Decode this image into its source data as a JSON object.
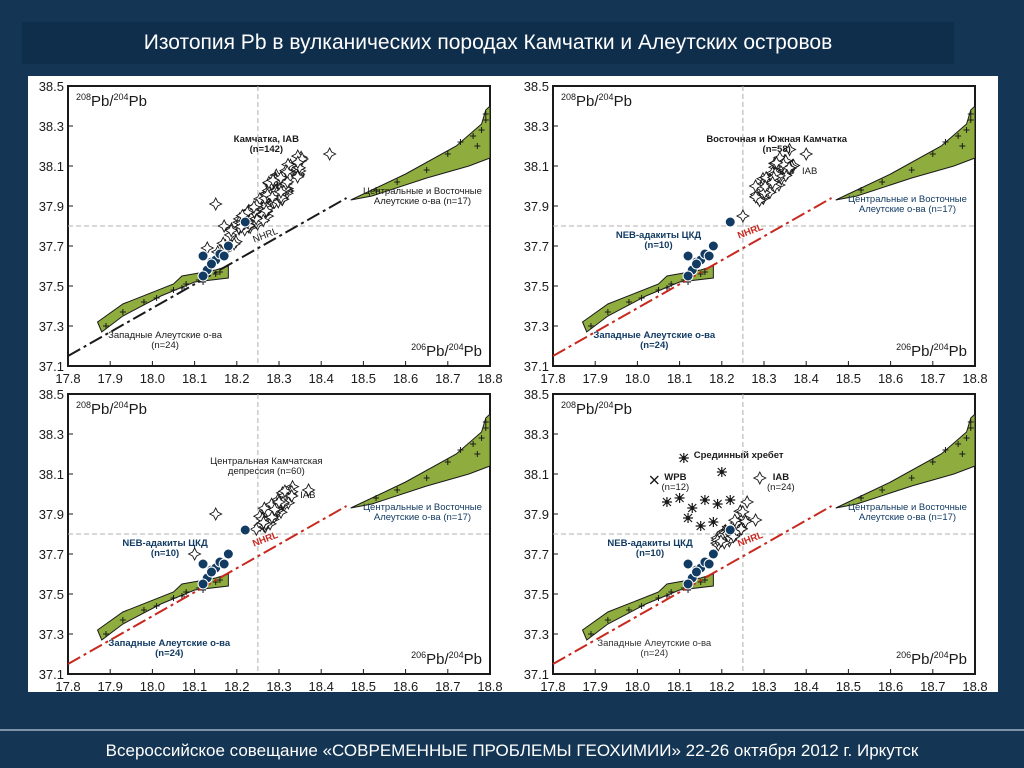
{
  "header": {
    "title": "Изотопия Pb в вулканических породах Камчатки и Алеутских островов"
  },
  "footer": {
    "text": "Всероссийское совещание «СОВРЕМЕННЫЕ ПРОБЛЕМЫ ГЕОХИМИИ» 22-26 октября 2012 г. Иркутск"
  },
  "colors": {
    "field_fill": "#8fad3f",
    "field_stroke": "#1a1a1a",
    "neb_point": "#123b63",
    "neb_text": "#123b63",
    "nhrl_dark": "#1a1a1a",
    "nhrl_red": "#c8281e",
    "ref_line": "#b0b0b0"
  },
  "axes": {
    "x_label_base": "Pb/",
    "x_label_sup1": "206",
    "x_label_sup2": "204",
    "x_label_end": "Pb",
    "y_label_base": "Pb/",
    "y_label_sup1": "208",
    "y_label_sup2": "204",
    "y_label_end": "Pb",
    "xlim": [
      17.8,
      18.8
    ],
    "ylim": [
      37.1,
      38.5
    ],
    "x_ticks": [
      "17.8",
      "17.9",
      "18.0",
      "18.1",
      "18.2",
      "18.3",
      "18.4",
      "18.5",
      "18.6",
      "18.7",
      "18.8"
    ],
    "y_ticks": [
      "37.1",
      "37.3",
      "37.5",
      "37.7",
      "37.9",
      "38.1",
      "38.3",
      "38.5"
    ],
    "ref_x": 18.25,
    "ref_y": 37.8
  },
  "chart_data": [
    {
      "type": "scatter",
      "nhrl_style": "dark",
      "show_x_label": true,
      "labels": [
        {
          "text": "Камчатка, IAB",
          "x": 18.27,
          "y": 38.22,
          "anchor": "middle",
          "color": "#1a1a1a",
          "bold": true
        },
        {
          "text": "(n=142)",
          "x": 18.27,
          "y": 38.17,
          "anchor": "middle",
          "color": "#1a1a1a",
          "bold": true
        },
        {
          "text": "Центральные и Восточные",
          "x": 18.64,
          "y": 37.96,
          "anchor": "middle",
          "color": "#1a1a1a",
          "bold": false
        },
        {
          "text": "Алеутские о-ва (n=17)",
          "x": 18.64,
          "y": 37.91,
          "anchor": "middle",
          "color": "#1a1a1a",
          "bold": false
        },
        {
          "text": "Западные Алеутские о-ва",
          "x": 18.03,
          "y": 37.24,
          "anchor": "middle",
          "color": "#1a1a1a",
          "bold": false
        },
        {
          "text": "(n=24)",
          "x": 18.03,
          "y": 37.19,
          "anchor": "middle",
          "color": "#1a1a1a",
          "bold": false
        },
        {
          "text": "NHRL",
          "x": 18.27,
          "y": 37.74,
          "anchor": "middle",
          "color": "#1a1a1a",
          "bold": false,
          "rotate": -21
        }
      ]
    },
    {
      "type": "scatter",
      "nhrl_style": "red",
      "show_x_label": true,
      "labels": [
        {
          "text": "Восточная и Южная Камчатка",
          "x": 18.33,
          "y": 38.22,
          "anchor": "middle",
          "color": "#1a1a1a",
          "bold": true
        },
        {
          "text": "(n=58)",
          "x": 18.33,
          "y": 38.17,
          "anchor": "middle",
          "color": "#1a1a1a",
          "bold": true
        },
        {
          "text": "IAB",
          "x": 18.39,
          "y": 38.06,
          "anchor": "start",
          "color": "#1a1a1a",
          "bold": false
        },
        {
          "text": "NEB-адакиты ЦКД",
          "x": 18.05,
          "y": 37.74,
          "anchor": "middle",
          "color": "#123b63",
          "bold": true
        },
        {
          "text": "(n=10)",
          "x": 18.05,
          "y": 37.69,
          "anchor": "middle",
          "color": "#123b63",
          "bold": true
        },
        {
          "text": "Центральные и Восточные",
          "x": 18.64,
          "y": 37.92,
          "anchor": "middle",
          "color": "#123b63",
          "bold": false
        },
        {
          "text": "Алеутские о-ва (n=17)",
          "x": 18.64,
          "y": 37.87,
          "anchor": "middle",
          "color": "#123b63",
          "bold": false
        },
        {
          "text": "Западные Алеутские о-ва",
          "x": 18.04,
          "y": 37.24,
          "anchor": "middle",
          "color": "#123b63",
          "bold": true
        },
        {
          "text": "(n=24)",
          "x": 18.04,
          "y": 37.19,
          "anchor": "middle",
          "color": "#123b63",
          "bold": true
        },
        {
          "text": "NHRL",
          "x": 18.27,
          "y": 37.76,
          "anchor": "middle",
          "color": "#c8281e",
          "bold": true,
          "rotate": -21
        }
      ]
    },
    {
      "type": "scatter",
      "nhrl_style": "red",
      "show_x_label": true,
      "labels": [
        {
          "text": "Центральная Камчатская",
          "x": 18.27,
          "y": 38.15,
          "anchor": "middle",
          "color": "#1a1a1a",
          "bold": false
        },
        {
          "text": "депрессия (n=60)",
          "x": 18.27,
          "y": 38.1,
          "anchor": "middle",
          "color": "#1a1a1a",
          "bold": false
        },
        {
          "text": "IAB",
          "x": 18.35,
          "y": 37.98,
          "anchor": "start",
          "color": "#1a1a1a",
          "bold": false
        },
        {
          "text": "NEB-адакиты ЦКД",
          "x": 18.03,
          "y": 37.74,
          "anchor": "middle",
          "color": "#123b63",
          "bold": true
        },
        {
          "text": "(n=10)",
          "x": 18.03,
          "y": 37.69,
          "anchor": "middle",
          "color": "#123b63",
          "bold": true
        },
        {
          "text": "Центральные и Восточные",
          "x": 18.64,
          "y": 37.92,
          "anchor": "middle",
          "color": "#123b63",
          "bold": false
        },
        {
          "text": "Алеутские о-ва (n=17)",
          "x": 18.64,
          "y": 37.87,
          "anchor": "middle",
          "color": "#123b63",
          "bold": false
        },
        {
          "text": "Западные Алеутские о-ва",
          "x": 18.04,
          "y": 37.24,
          "anchor": "middle",
          "color": "#123b63",
          "bold": true
        },
        {
          "text": "(n=24)",
          "x": 18.04,
          "y": 37.19,
          "anchor": "middle",
          "color": "#123b63",
          "bold": true
        },
        {
          "text": "NHRL",
          "x": 18.27,
          "y": 37.76,
          "anchor": "middle",
          "color": "#c8281e",
          "bold": true,
          "rotate": -21
        }
      ]
    },
    {
      "type": "scatter",
      "nhrl_style": "red",
      "show_x_label": true,
      "labels": [
        {
          "text": "Срединный хребет",
          "x": 18.24,
          "y": 38.18,
          "anchor": "middle",
          "color": "#1a1a1a",
          "bold": true
        },
        {
          "text": "WPB",
          "x": 18.09,
          "y": 38.07,
          "anchor": "middle",
          "color": "#1a1a1a",
          "bold": true
        },
        {
          "text": "(n=12)",
          "x": 18.09,
          "y": 38.02,
          "anchor": "middle",
          "color": "#1a1a1a",
          "bold": false
        },
        {
          "text": "IAB",
          "x": 18.34,
          "y": 38.07,
          "anchor": "middle",
          "color": "#1a1a1a",
          "bold": true
        },
        {
          "text": "(n=24)",
          "x": 18.34,
          "y": 38.02,
          "anchor": "middle",
          "color": "#1a1a1a",
          "bold": false
        },
        {
          "text": "NEB-адакиты ЦКД",
          "x": 18.03,
          "y": 37.74,
          "anchor": "middle",
          "color": "#123b63",
          "bold": true
        },
        {
          "text": "(n=10)",
          "x": 18.03,
          "y": 37.69,
          "anchor": "middle",
          "color": "#123b63",
          "bold": true
        },
        {
          "text": "Центральные и Восточные",
          "x": 18.64,
          "y": 37.92,
          "anchor": "middle",
          "color": "#123b63",
          "bold": false
        },
        {
          "text": "Алеутские о-ва (n=17)",
          "x": 18.64,
          "y": 37.87,
          "anchor": "middle",
          "color": "#123b63",
          "bold": false
        },
        {
          "text": "Западные Алеутские о-ва",
          "x": 18.04,
          "y": 37.24,
          "anchor": "middle",
          "color": "#333333",
          "bold": false
        },
        {
          "text": "(n=24)",
          "x": 18.04,
          "y": 37.19,
          "anchor": "middle",
          "color": "#333333",
          "bold": false
        },
        {
          "text": "NHRL",
          "x": 18.27,
          "y": 37.76,
          "anchor": "middle",
          "color": "#c8281e",
          "bold": true,
          "rotate": -21
        }
      ]
    }
  ]
}
